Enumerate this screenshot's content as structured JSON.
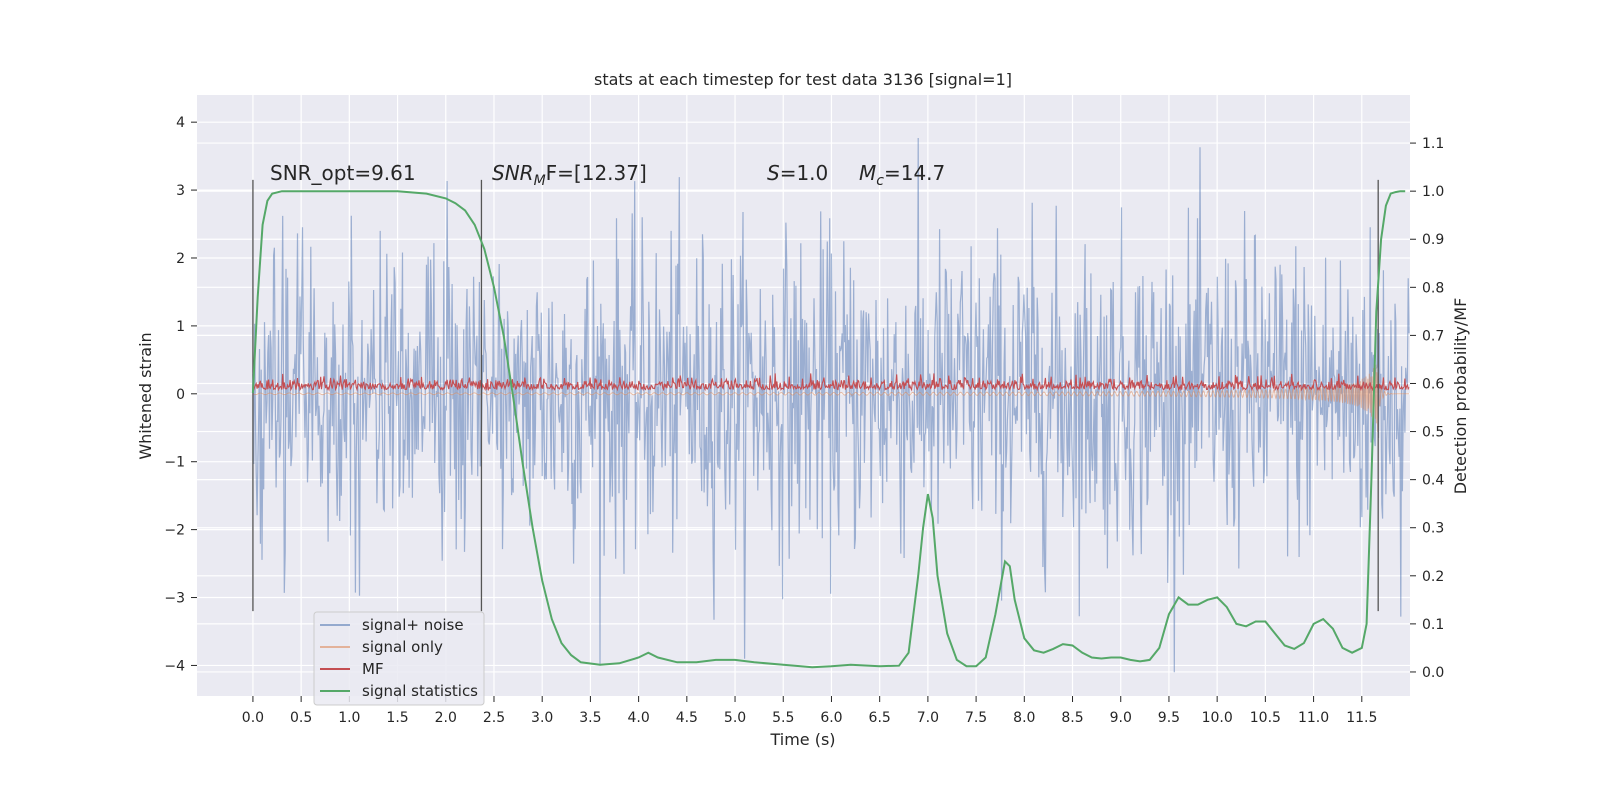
{
  "chart_data": {
    "type": "line",
    "title": "stats at each timestep for test data 3136 [signal=1]",
    "xlabel": "Time (s)",
    "ylabel": "Whitened strain",
    "y2label": "Detection probability/MF",
    "xlim": [
      -0.58,
      12.0
    ],
    "ylim": [
      -4.45,
      4.4
    ],
    "y2lim": [
      -0.05,
      1.2
    ],
    "x_ticks": [
      "0.0",
      "0.5",
      "1.0",
      "1.5",
      "2.0",
      "2.5",
      "3.0",
      "3.5",
      "4.0",
      "4.5",
      "5.0",
      "5.5",
      "6.0",
      "6.5",
      "7.0",
      "7.5",
      "8.0",
      "8.5",
      "9.0",
      "9.5",
      "10.0",
      "10.5",
      "11.0",
      "11.5"
    ],
    "y_ticks": [
      "4",
      "3",
      "2",
      "1",
      "0",
      "−1",
      "−2",
      "−3",
      "−4"
    ],
    "y2_ticks": [
      "1.1",
      "1.0",
      "0.9",
      "0.8",
      "0.7",
      "0.6",
      "0.5",
      "0.4",
      "0.3",
      "0.2",
      "0.1",
      "0.0"
    ],
    "grid": true,
    "legend_position": "lower-left",
    "legend": [
      "signal+ noise",
      "signal only",
      "MF",
      "signal statistics"
    ],
    "annotations": {
      "snr_opt": "SNR_opt=9.61",
      "snr_mf_label": "SNR",
      "snr_mf_sub": "M",
      "snr_mf_value": "F=[12.37]",
      "s_label": "S",
      "s_value": "=1.0",
      "mc_label": "M",
      "mc_sub": "c",
      "mc_value": "=14.7"
    },
    "vlines_s": [
      0.0,
      2.37,
      11.67
    ],
    "series": [
      {
        "name": "signal+ noise",
        "color": "#4c72b0",
        "description_range": [
          -4.1,
          4.05
        ],
        "x_range": [
          0.0,
          11.99
        ]
      },
      {
        "name": "signal only",
        "color": "#dd8452",
        "chirp_end_s": 11.67,
        "peak_amplitude": 1.1
      },
      {
        "name": "MF",
        "color": "#c44e52",
        "typical_range": [
          0.0,
          0.3
        ]
      },
      {
        "name": "signal statistics",
        "color": "#55a868",
        "x": [
          0.0,
          0.05,
          0.1,
          0.15,
          0.2,
          0.3,
          0.5,
          1.0,
          1.5,
          1.8,
          2.0,
          2.1,
          2.2,
          2.3,
          2.4,
          2.5,
          2.6,
          2.7,
          2.8,
          2.9,
          3.0,
          3.1,
          3.2,
          3.3,
          3.4,
          3.6,
          3.8,
          4.0,
          4.1,
          4.2,
          4.4,
          4.6,
          4.8,
          5.0,
          5.2,
          5.5,
          5.8,
          6.0,
          6.2,
          6.5,
          6.7,
          6.8,
          6.9,
          6.95,
          7.0,
          7.05,
          7.1,
          7.2,
          7.3,
          7.4,
          7.5,
          7.6,
          7.7,
          7.8,
          7.85,
          7.9,
          8.0,
          8.1,
          8.2,
          8.3,
          8.4,
          8.5,
          8.6,
          8.7,
          8.8,
          8.9,
          9.0,
          9.1,
          9.2,
          9.3,
          9.4,
          9.5,
          9.6,
          9.7,
          9.8,
          9.9,
          10.0,
          10.1,
          10.2,
          10.3,
          10.4,
          10.5,
          10.6,
          10.7,
          10.8,
          10.9,
          11.0,
          11.1,
          11.2,
          11.3,
          11.4,
          11.5,
          11.55,
          11.6,
          11.65,
          11.7,
          11.75,
          11.8,
          11.85,
          11.9,
          11.95
        ],
        "y": [
          0.58,
          0.78,
          0.93,
          0.98,
          0.995,
          1.0,
          1.0,
          1.0,
          1.0,
          0.995,
          0.985,
          0.975,
          0.96,
          0.93,
          0.88,
          0.8,
          0.7,
          0.57,
          0.43,
          0.3,
          0.19,
          0.11,
          0.06,
          0.035,
          0.02,
          0.015,
          0.018,
          0.03,
          0.04,
          0.03,
          0.02,
          0.02,
          0.025,
          0.025,
          0.02,
          0.015,
          0.01,
          0.012,
          0.015,
          0.012,
          0.013,
          0.04,
          0.2,
          0.3,
          0.37,
          0.32,
          0.2,
          0.08,
          0.025,
          0.012,
          0.012,
          0.03,
          0.12,
          0.23,
          0.22,
          0.15,
          0.07,
          0.045,
          0.04,
          0.048,
          0.058,
          0.055,
          0.04,
          0.03,
          0.028,
          0.03,
          0.03,
          0.025,
          0.022,
          0.025,
          0.05,
          0.12,
          0.155,
          0.14,
          0.14,
          0.15,
          0.155,
          0.135,
          0.1,
          0.095,
          0.105,
          0.105,
          0.08,
          0.055,
          0.048,
          0.06,
          0.1,
          0.11,
          0.09,
          0.05,
          0.04,
          0.05,
          0.1,
          0.4,
          0.75,
          0.9,
          0.97,
          0.995,
          0.998,
          1.0,
          1.0
        ]
      }
    ]
  }
}
